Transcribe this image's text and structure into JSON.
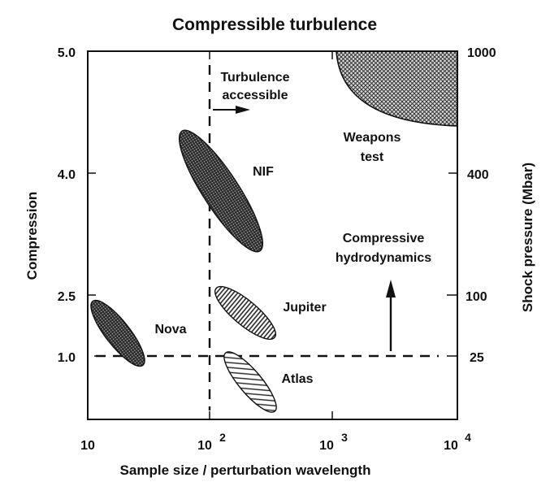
{
  "chart_data": {
    "type": "diagram",
    "title": "Compressible turbulence",
    "xlabel": "Sample size / perturbation wavelength",
    "ylabel_left": "Compression",
    "ylabel_right": "Shock pressure (Mbar)",
    "x_scale": "log",
    "xlim": [
      10,
      10000
    ],
    "x_ticks": [
      {
        "value": 10,
        "base": "10",
        "exp": ""
      },
      {
        "value": 100,
        "base": "10",
        "exp": "2"
      },
      {
        "value": 1000,
        "base": "10",
        "exp": "3"
      },
      {
        "value": 10000,
        "base": "10",
        "exp": "4"
      }
    ],
    "y_left_ticks": [
      "5.0",
      "4.0",
      "2.5",
      "1.0"
    ],
    "y_right_ticks": [
      "1000",
      "400",
      "100",
      "25"
    ],
    "regions": [
      {
        "name": "NIF",
        "label": "NIF",
        "pattern": "dots"
      },
      {
        "name": "Nova",
        "label": "Nova",
        "pattern": "dots"
      },
      {
        "name": "Jupiter",
        "label": "Jupiter",
        "pattern": "horizontal"
      },
      {
        "name": "Atlas",
        "label": "Atlas",
        "pattern": "diagonal"
      },
      {
        "name": "Weapons test",
        "label_lines": [
          "Weapons",
          "test"
        ],
        "pattern": "crosshatch"
      }
    ],
    "annotations": {
      "turbulence": [
        "Turbulence",
        "accessible"
      ],
      "compressive": [
        "Compressive",
        "hydrodynamics"
      ]
    }
  }
}
